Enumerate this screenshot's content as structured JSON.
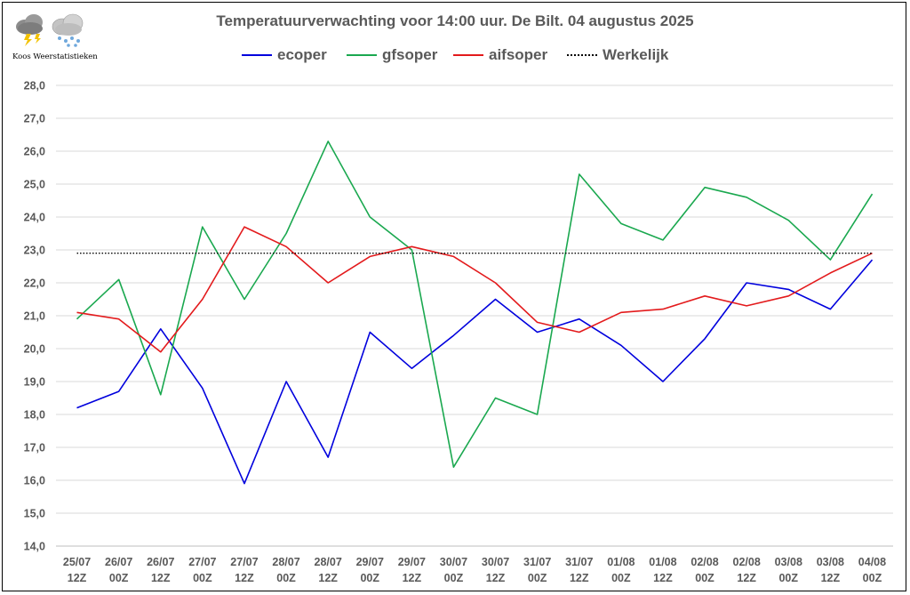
{
  "title": "Temperatuurverwachting voor 14:00 uur. De Bilt. 04 augustus 2025",
  "logo": {
    "text": "Koos Weerstatistieken",
    "icons": [
      "thunderstorm-cloud-icon",
      "snow-cloud-icon"
    ]
  },
  "chart_data": {
    "type": "line",
    "title": "Temperatuurverwachting voor 14:00 uur. De Bilt. 04 augustus 2025",
    "xlabel": "",
    "ylabel": "",
    "ylim": [
      14,
      28
    ],
    "ystep": 1,
    "grid": true,
    "legend_position": "top",
    "categories": [
      [
        "25/07",
        "12Z"
      ],
      [
        "26/07",
        "00Z"
      ],
      [
        "26/07",
        "12Z"
      ],
      [
        "27/07",
        "00Z"
      ],
      [
        "27/07",
        "12Z"
      ],
      [
        "28/07",
        "00Z"
      ],
      [
        "28/07",
        "12Z"
      ],
      [
        "29/07",
        "00Z"
      ],
      [
        "29/07",
        "12Z"
      ],
      [
        "30/07",
        "00Z"
      ],
      [
        "30/07",
        "12Z"
      ],
      [
        "31/07",
        "00Z"
      ],
      [
        "31/07",
        "12Z"
      ],
      [
        "01/08",
        "00Z"
      ],
      [
        "01/08",
        "12Z"
      ],
      [
        "02/08",
        "00Z"
      ],
      [
        "02/08",
        "12Z"
      ],
      [
        "03/08",
        "00Z"
      ],
      [
        "03/08",
        "12Z"
      ],
      [
        "04/08",
        "00Z"
      ]
    ],
    "series": [
      {
        "name": "ecoper",
        "color": "#0000dd",
        "style": "solid",
        "values": [
          18.2,
          18.7,
          20.6,
          18.8,
          15.9,
          19.0,
          16.7,
          20.5,
          19.4,
          20.4,
          21.5,
          20.5,
          20.9,
          20.1,
          19.0,
          20.3,
          22.0,
          21.8,
          21.2,
          22.7
        ]
      },
      {
        "name": "gfsoper",
        "color": "#1aa84f",
        "style": "solid",
        "values": [
          20.9,
          22.1,
          18.6,
          23.7,
          21.5,
          23.5,
          26.3,
          24.0,
          23.0,
          16.4,
          18.5,
          18.0,
          25.3,
          23.8,
          23.3,
          24.9,
          24.6,
          23.9,
          22.7,
          24.7
        ]
      },
      {
        "name": "aifsoper",
        "color": "#e31a1c",
        "style": "solid",
        "values": [
          21.1,
          20.9,
          19.9,
          21.5,
          23.7,
          23.1,
          22.0,
          22.8,
          23.1,
          22.8,
          22.0,
          20.8,
          20.5,
          21.1,
          21.2,
          21.6,
          21.3,
          21.6,
          22.3,
          22.9
        ]
      },
      {
        "name": "Werkelijk",
        "color": "#000000",
        "style": "dotted",
        "constant": 22.9
      }
    ]
  }
}
